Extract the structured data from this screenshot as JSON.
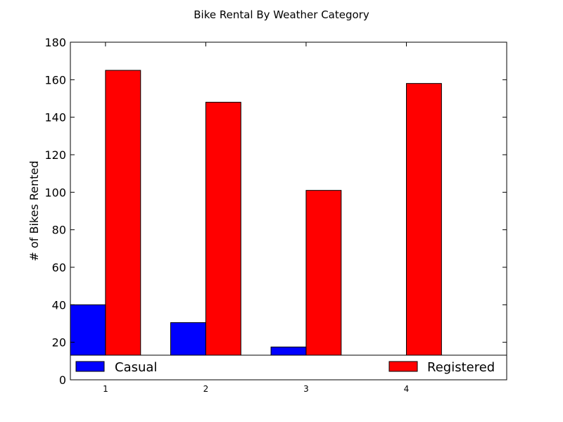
{
  "chart_data": {
    "type": "bar",
    "title": "Bike Rental By Weather Category",
    "xlabel": "",
    "ylabel": "# of Bikes Rented",
    "categories": [
      "1",
      "2",
      "3",
      "4"
    ],
    "series": [
      {
        "name": "Casual",
        "values": [
          40,
          30.5,
          17.5,
          0
        ],
        "color": "#0000ff"
      },
      {
        "name": "Registered",
        "values": [
          165,
          148,
          101,
          158
        ],
        "color": "#ff0000"
      }
    ],
    "ylim": [
      0,
      180
    ],
    "yticks": [
      0,
      20,
      40,
      60,
      80,
      100,
      120,
      140,
      160,
      180
    ],
    "grid": false,
    "legend": "lower, spanning plot width"
  }
}
